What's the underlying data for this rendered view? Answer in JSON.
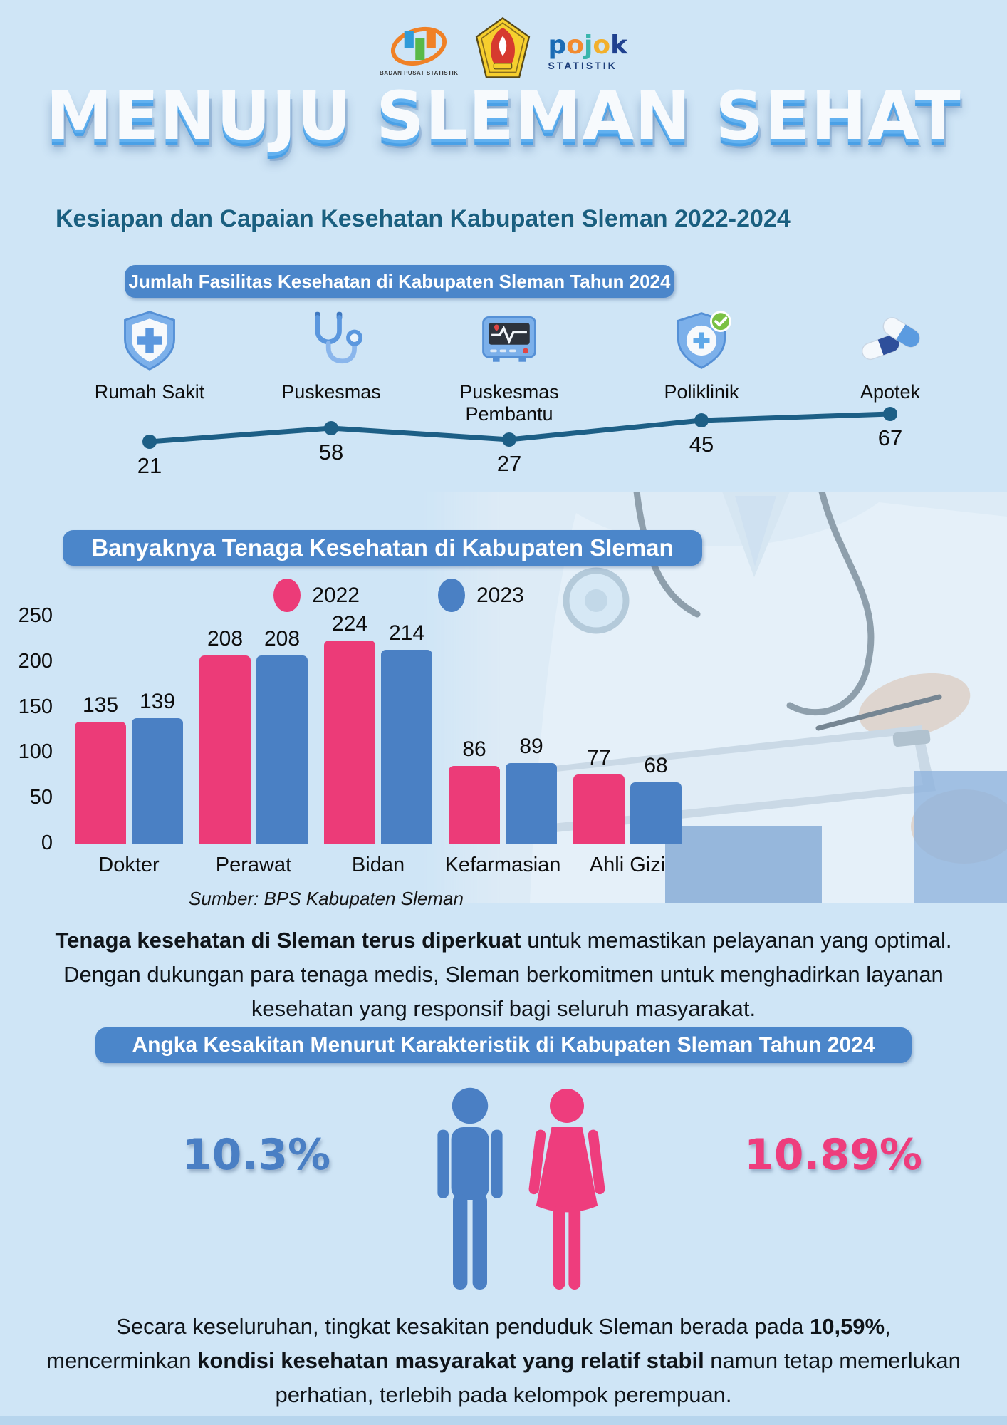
{
  "page": {
    "background": "#cfe5f6"
  },
  "header": {
    "logos": {
      "bps_caption": "BADAN PUSAT STATISTIK",
      "pojok_line1": "pojok",
      "pojok_line2": "STATISTIK"
    },
    "title": "MENUJU SLEMAN SEHAT",
    "subtitle": "Kesiapan dan Capaian Kesehatan Kabupaten Sleman 2022-2024"
  },
  "facilities": {
    "heading": "Jumlah Fasilitas Kesehatan di Kabupaten Sleman Tahun 2024",
    "items": [
      {
        "label": "Rumah Sakit",
        "value": 21,
        "icon": "hospital-shield"
      },
      {
        "label": "Puskesmas",
        "value": 58,
        "icon": "stethoscope"
      },
      {
        "label": "Puskesmas Pembantu",
        "value": 27,
        "icon": "heart-monitor"
      },
      {
        "label": "Poliklinik",
        "value": 45,
        "icon": "shield-check"
      },
      {
        "label": "Apotek",
        "value": 67,
        "icon": "pills"
      }
    ]
  },
  "workers": {
    "heading": "Banyaknya Tenaga Kesehatan di Kabupaten Sleman",
    "legend": [
      {
        "label": "2022",
        "color": "#ec3b78"
      },
      {
        "label": "2023",
        "color": "#4a80c4"
      }
    ],
    "source": "Sumber: BPS Kabupaten Sleman"
  },
  "chart_data": [
    {
      "type": "line",
      "title": "Jumlah Fasilitas Kesehatan di Kabupaten Sleman Tahun 2024",
      "categories": [
        "Rumah Sakit",
        "Puskesmas",
        "Puskesmas Pembantu",
        "Poliklinik",
        "Apotek"
      ],
      "values": [
        21,
        58,
        27,
        45,
        67
      ],
      "line_color": "#1d5f86",
      "grid": false,
      "legend_position": "none"
    },
    {
      "type": "bar",
      "title": "Banyaknya Tenaga Kesehatan di Kabupaten Sleman",
      "categories": [
        "Dokter",
        "Perawat",
        "Bidan",
        "Kefarmasian",
        "Ahli Gizi"
      ],
      "series": [
        {
          "name": "2022",
          "color": "#ec3b78",
          "values": [
            135,
            208,
            224,
            86,
            77
          ]
        },
        {
          "name": "2023",
          "color": "#4a80c4",
          "values": [
            139,
            208,
            214,
            89,
            68
          ]
        }
      ],
      "ylim": [
        0,
        250
      ],
      "yticks": [
        0,
        50,
        100,
        150,
        200,
        250
      ],
      "grid": false,
      "legend_position": "top"
    }
  ],
  "narrative_workers": {
    "bold": "Tenaga kesehatan di Sleman terus diperkuat",
    "rest": " untuk memastikan pelayanan yang optimal. Dengan dukungan para tenaga medis, Sleman berkomitmen untuk menghadirkan layanan kesehatan yang responsif bagi seluruh masyarakat."
  },
  "morbidity": {
    "heading": "Angka Kesakitan Menurut Karakteristik di Kabupaten Sleman Tahun 2024",
    "male": {
      "value": "10.3%",
      "color": "#4a7fc4"
    },
    "female": {
      "value": "10.89%",
      "color": "#ee3d7d"
    }
  },
  "narrative_morbidity": {
    "part1": "Secara keseluruhan, tingkat kesakitan penduduk Sleman berada pada ",
    "bold1": "10,59%",
    "part2": ", mencerminkan ",
    "bold2": "kondisi kesehatan masyarakat yang relatif stabil",
    "part3": " namun tetap memerlukan perhatian, terlebih pada kelompok perempuan."
  }
}
